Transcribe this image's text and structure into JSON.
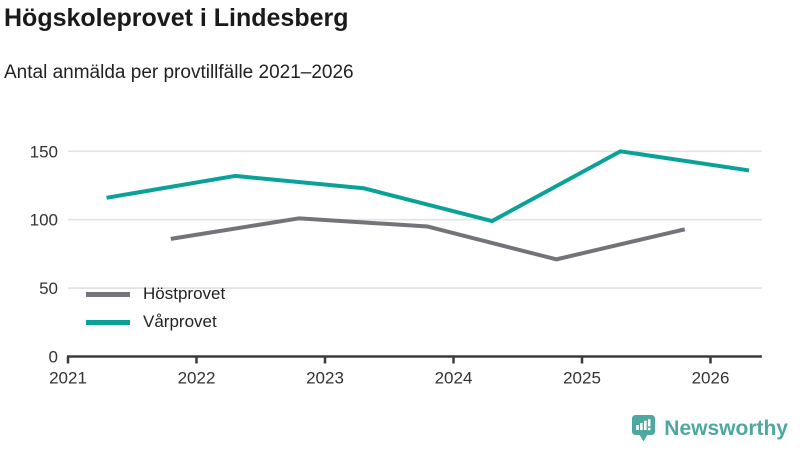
{
  "header": {
    "title": "Högskoleprovet i Lindesberg",
    "subtitle": "Antal anmälda per provtillfälle 2021–2026"
  },
  "colors": {
    "host_line": "#75727A",
    "var_line": "#0AA298",
    "axis": "#3B3B3B",
    "grid": "#E3E3E3",
    "tick_text": "#333333",
    "logo_teal": "#4DA8A0"
  },
  "legend": [
    {
      "label": "Höstprovet",
      "series": "Höstprovet"
    },
    {
      "label": "Vårprovet",
      "series": "Vårprovet"
    }
  ],
  "footer": {
    "brand": "Newsworthy",
    "icon": "bar-chart-speech-bubble-icon"
  },
  "chart_data": {
    "type": "line",
    "title": "Högskoleprovet i Lindesberg",
    "subtitle": "Antal anmälda per provtillfälle 2021–2026",
    "x_tick_labels": [
      "2021",
      "2022",
      "2023",
      "2024",
      "2025",
      "2026"
    ],
    "x_tick_values": [
      2021,
      2022,
      2023,
      2024,
      2025,
      2026
    ],
    "y_tick_labels": [
      "0",
      "50",
      "100",
      "150"
    ],
    "y_tick_values": [
      0,
      50,
      100,
      150
    ],
    "xlim": [
      2021,
      2026.4
    ],
    "ylim": [
      0,
      160
    ],
    "grid": "horizontal-only",
    "legend_position": "inside-bottom-left",
    "series": [
      {
        "name": "Höstprovet",
        "color": "#75727A",
        "x": [
          2021.8,
          2022.8,
          2023.8,
          2024.8,
          2025.8
        ],
        "values": [
          86,
          101,
          95,
          71,
          93
        ]
      },
      {
        "name": "Vårprovet",
        "color": "#0AA298",
        "x": [
          2021.3,
          2022.3,
          2023.3,
          2024.3,
          2025.3,
          2026.3
        ],
        "values": [
          116,
          132,
          123,
          99,
          150,
          136
        ]
      }
    ]
  }
}
